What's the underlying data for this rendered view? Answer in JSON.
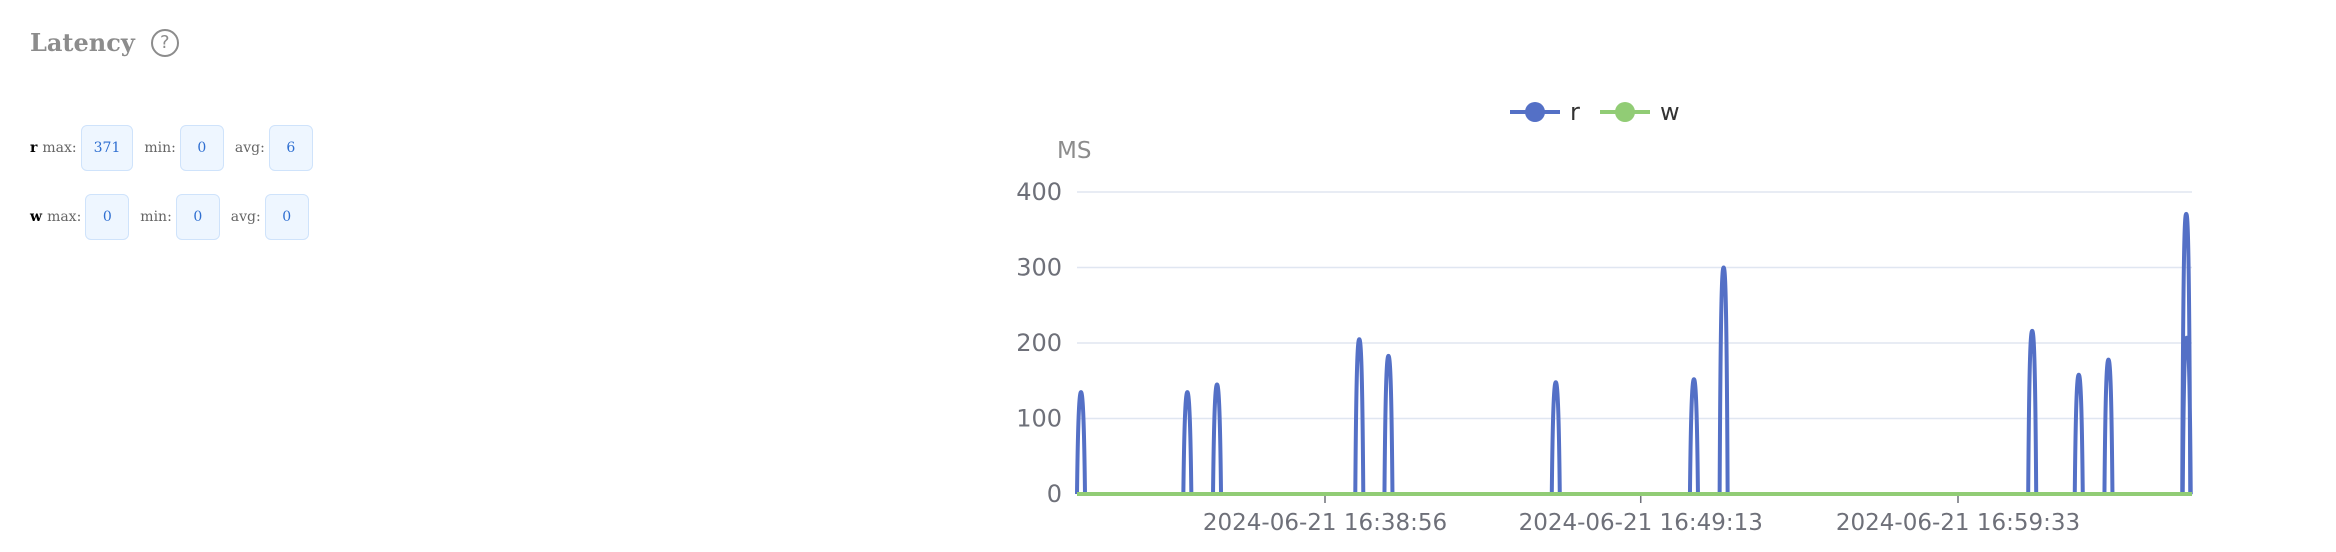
{
  "header": {
    "title": "Latency",
    "help_icon": "question-circle-icon"
  },
  "stats": {
    "r": {
      "name": "r",
      "max_label": "max:",
      "max": "371",
      "min_label": "min:",
      "min": "0",
      "avg_label": "avg:",
      "avg": "6"
    },
    "w": {
      "name": "w",
      "max_label": "max:",
      "max": "0",
      "min_label": "min:",
      "min": "0",
      "avg_label": "avg:",
      "avg": "0"
    }
  },
  "chart_data": {
    "type": "line",
    "ylabel": "MS",
    "ylim": [
      0,
      400
    ],
    "yticks": [
      0,
      100,
      200,
      300,
      400
    ],
    "xticks": [
      "2024-06-21 16:38:56",
      "2024-06-21 16:49:13",
      "2024-06-21 16:59:33"
    ],
    "grid": true,
    "legend_position": "top-center",
    "series": [
      {
        "name": "r",
        "color": "#5470c6",
        "spikes": [
          {
            "time": "2024-06-21 16:30:55",
            "value": 135
          },
          {
            "time": "2024-06-21 16:34:27",
            "value": 135
          },
          {
            "time": "2024-06-21 16:35:25",
            "value": 145
          },
          {
            "time": "2024-06-21 16:40:03",
            "value": 205
          },
          {
            "time": "2024-06-21 16:41:00",
            "value": 183
          },
          {
            "time": "2024-06-21 16:46:27",
            "value": 148
          },
          {
            "time": "2024-06-21 16:50:57",
            "value": 152
          },
          {
            "time": "2024-06-21 16:51:55",
            "value": 300
          },
          {
            "time": "2024-06-21 17:01:58",
            "value": 216
          },
          {
            "time": "2024-06-21 17:03:29",
            "value": 158
          },
          {
            "time": "2024-06-21 17:04:27",
            "value": 178
          },
          {
            "time": "2024-06-21 17:06:59",
            "value": 371
          },
          {
            "time": "2024-06-21 17:07:00",
            "value": 207
          }
        ]
      },
      {
        "name": "w",
        "color": "#91cc75",
        "constant": 0
      }
    ]
  }
}
